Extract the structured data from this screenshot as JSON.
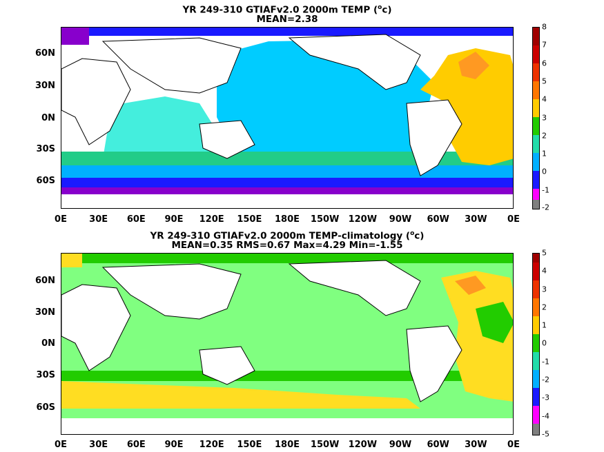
{
  "panels": [
    {
      "title_pre": "YR 249-310 GTIAFv2.0 2000m TEMP (",
      "title_sup": "o",
      "title_post": "c)",
      "stats": "MEAN=2.38",
      "colorbar": {
        "labels": [
          "8",
          "7",
          "6",
          "5",
          "4",
          "3",
          "2",
          "1",
          "0",
          "-1",
          "-2"
        ],
        "colors": [
          "#a00000",
          "#cc0000",
          "#ee3300",
          "#ff7700",
          "#ffcc00",
          "#22cc00",
          "#22ddaa",
          "#00b0ff",
          "#1a1aff",
          "#8800cc",
          "#ff00ff",
          "#808080"
        ]
      }
    },
    {
      "title_pre": "YR 249-310 GTIAFv2.0 2000m TEMP-climatology (",
      "title_sup": "o",
      "title_post": "c)",
      "stats": "MEAN=0.35   RMS=0.67   Max=4.29   Min=-1.55",
      "colorbar": {
        "labels": [
          "5",
          "4",
          "3",
          "2",
          "1",
          "0",
          "-1",
          "-2",
          "-3",
          "-4",
          "-5"
        ],
        "colors": [
          "#a00000",
          "#cc0000",
          "#ee3300",
          "#ff7700",
          "#ffcc00",
          "#22cc00",
          "#22ddaa",
          "#00b0ff",
          "#1a1aff",
          "#8800cc",
          "#ff00ff",
          "#808080"
        ]
      }
    }
  ],
  "lat_labels": [
    "60N",
    "30N",
    "0N",
    "30S",
    "60S"
  ],
  "lon_labels": [
    "0E",
    "30E",
    "60E",
    "90E",
    "120E",
    "150E",
    "180E",
    "150W",
    "120W",
    "90W",
    "60W",
    "30W",
    "0E"
  ],
  "map_colors": {
    "land": "#ffffff",
    "pacific_top": "#00ccff",
    "indian_top": "#44eedd",
    "southern_top": "#1a1aff",
    "antarctic_top": "#8800cc",
    "atlantic_top": "#ffcc00",
    "anomaly_bg": "#80ff80",
    "anomaly_atlantic": "#ffdd22",
    "anomaly_green": "#22cc00"
  }
}
